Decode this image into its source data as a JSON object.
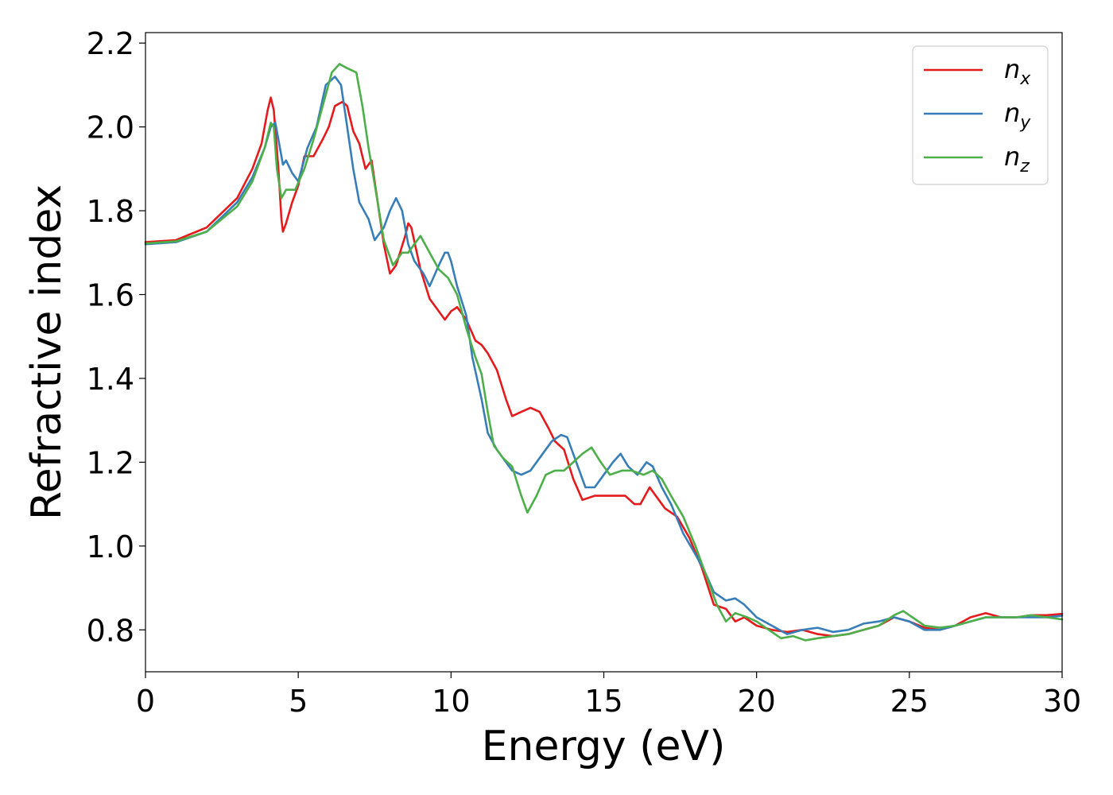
{
  "chart_data": {
    "type": "line",
    "xlabel": "Energy (eV)",
    "ylabel": "Refractive index",
    "xlim": [
      0,
      30
    ],
    "ylim": [
      0.7,
      2.225
    ],
    "xticks": [
      0,
      5,
      10,
      15,
      20,
      25,
      30
    ],
    "xtick_labels": [
      "0",
      "5",
      "10",
      "15",
      "20",
      "25",
      "30"
    ],
    "yticks": [
      0.8,
      1.0,
      1.2,
      1.4,
      1.6,
      1.8,
      2.0,
      2.2
    ],
    "ytick_labels": [
      "0.8",
      "1.0",
      "1.2",
      "1.4",
      "1.6",
      "1.8",
      "2.0",
      "2.2"
    ],
    "grid": false,
    "legend_position": "top-right",
    "series": [
      {
        "name": "n",
        "subscript": "x",
        "color": "#e41a1c",
        "points": [
          [
            0,
            1.725
          ],
          [
            1,
            1.73
          ],
          [
            2,
            1.76
          ],
          [
            3,
            1.83
          ],
          [
            3.5,
            1.9
          ],
          [
            3.8,
            1.96
          ],
          [
            4.0,
            2.04
          ],
          [
            4.1,
            2.07
          ],
          [
            4.2,
            2.04
          ],
          [
            4.35,
            1.9
          ],
          [
            4.45,
            1.78
          ],
          [
            4.5,
            1.75
          ],
          [
            4.6,
            1.77
          ],
          [
            4.8,
            1.82
          ],
          [
            5.0,
            1.86
          ],
          [
            5.2,
            1.93
          ],
          [
            5.5,
            1.93
          ],
          [
            5.8,
            1.97
          ],
          [
            6.0,
            2.0
          ],
          [
            6.2,
            2.05
          ],
          [
            6.45,
            2.06
          ],
          [
            6.6,
            2.05
          ],
          [
            6.8,
            1.99
          ],
          [
            7.0,
            1.96
          ],
          [
            7.2,
            1.9
          ],
          [
            7.4,
            1.92
          ],
          [
            7.6,
            1.82
          ],
          [
            7.8,
            1.72
          ],
          [
            8.0,
            1.65
          ],
          [
            8.2,
            1.67
          ],
          [
            8.5,
            1.74
          ],
          [
            8.6,
            1.77
          ],
          [
            8.7,
            1.76
          ],
          [
            9.0,
            1.66
          ],
          [
            9.3,
            1.59
          ],
          [
            9.6,
            1.56
          ],
          [
            9.8,
            1.54
          ],
          [
            10.0,
            1.56
          ],
          [
            10.2,
            1.57
          ],
          [
            10.5,
            1.54
          ],
          [
            10.8,
            1.49
          ],
          [
            11.0,
            1.48
          ],
          [
            11.2,
            1.46
          ],
          [
            11.5,
            1.42
          ],
          [
            11.8,
            1.35
          ],
          [
            12.0,
            1.31
          ],
          [
            12.3,
            1.32
          ],
          [
            12.6,
            1.33
          ],
          [
            12.9,
            1.32
          ],
          [
            13.2,
            1.28
          ],
          [
            13.4,
            1.25
          ],
          [
            13.7,
            1.23
          ],
          [
            14.0,
            1.16
          ],
          [
            14.3,
            1.11
          ],
          [
            14.7,
            1.12
          ],
          [
            15.0,
            1.12
          ],
          [
            15.3,
            1.12
          ],
          [
            15.7,
            1.12
          ],
          [
            16.0,
            1.1
          ],
          [
            16.2,
            1.1
          ],
          [
            16.5,
            1.14
          ],
          [
            16.8,
            1.11
          ],
          [
            17.0,
            1.09
          ],
          [
            17.4,
            1.07
          ],
          [
            17.8,
            1.02
          ],
          [
            18.2,
            0.95
          ],
          [
            18.6,
            0.86
          ],
          [
            19.0,
            0.85
          ],
          [
            19.3,
            0.82
          ],
          [
            19.6,
            0.83
          ],
          [
            20.0,
            0.81
          ],
          [
            20.5,
            0.8
          ],
          [
            21.0,
            0.795
          ],
          [
            21.5,
            0.8
          ],
          [
            22.0,
            0.79
          ],
          [
            22.5,
            0.785
          ],
          [
            23.0,
            0.79
          ],
          [
            23.5,
            0.8
          ],
          [
            24.0,
            0.81
          ],
          [
            24.5,
            0.83
          ],
          [
            25.0,
            0.82
          ],
          [
            25.5,
            0.805
          ],
          [
            26.0,
            0.8
          ],
          [
            26.5,
            0.81
          ],
          [
            27.0,
            0.83
          ],
          [
            27.5,
            0.84
          ],
          [
            28.0,
            0.83
          ],
          [
            28.5,
            0.83
          ],
          [
            29.0,
            0.835
          ],
          [
            29.5,
            0.835
          ],
          [
            30.0,
            0.838
          ]
        ]
      },
      {
        "name": "n",
        "subscript": "y",
        "color": "#377eb8",
        "points": [
          [
            0,
            1.72
          ],
          [
            1,
            1.725
          ],
          [
            2,
            1.75
          ],
          [
            3,
            1.82
          ],
          [
            3.5,
            1.88
          ],
          [
            3.9,
            1.95
          ],
          [
            4.1,
            2.0
          ],
          [
            4.25,
            2.01
          ],
          [
            4.35,
            1.97
          ],
          [
            4.5,
            1.91
          ],
          [
            4.6,
            1.92
          ],
          [
            4.8,
            1.89
          ],
          [
            5.0,
            1.87
          ],
          [
            5.3,
            1.95
          ],
          [
            5.6,
            2.0
          ],
          [
            5.9,
            2.1
          ],
          [
            6.2,
            2.12
          ],
          [
            6.4,
            2.1
          ],
          [
            6.6,
            2.0
          ],
          [
            6.8,
            1.9
          ],
          [
            7.0,
            1.82
          ],
          [
            7.3,
            1.78
          ],
          [
            7.5,
            1.73
          ],
          [
            7.8,
            1.76
          ],
          [
            8.0,
            1.8
          ],
          [
            8.2,
            1.83
          ],
          [
            8.4,
            1.8
          ],
          [
            8.6,
            1.72
          ],
          [
            8.8,
            1.68
          ],
          [
            9.1,
            1.65
          ],
          [
            9.3,
            1.62
          ],
          [
            9.6,
            1.67
          ],
          [
            9.8,
            1.7
          ],
          [
            9.9,
            1.7
          ],
          [
            10.0,
            1.68
          ],
          [
            10.2,
            1.62
          ],
          [
            10.5,
            1.55
          ],
          [
            10.7,
            1.45
          ],
          [
            11.0,
            1.35
          ],
          [
            11.2,
            1.27
          ],
          [
            11.5,
            1.23
          ],
          [
            11.8,
            1.2
          ],
          [
            12.0,
            1.18
          ],
          [
            12.3,
            1.17
          ],
          [
            12.6,
            1.18
          ],
          [
            13.0,
            1.22
          ],
          [
            13.3,
            1.25
          ],
          [
            13.6,
            1.265
          ],
          [
            13.8,
            1.26
          ],
          [
            14.1,
            1.2
          ],
          [
            14.4,
            1.14
          ],
          [
            14.7,
            1.14
          ],
          [
            15.0,
            1.17
          ],
          [
            15.3,
            1.2
          ],
          [
            15.55,
            1.22
          ],
          [
            15.8,
            1.19
          ],
          [
            16.1,
            1.17
          ],
          [
            16.4,
            1.2
          ],
          [
            16.6,
            1.19
          ],
          [
            16.9,
            1.14
          ],
          [
            17.2,
            1.1
          ],
          [
            17.6,
            1.03
          ],
          [
            18.0,
            0.98
          ],
          [
            18.3,
            0.94
          ],
          [
            18.6,
            0.89
          ],
          [
            19.0,
            0.87
          ],
          [
            19.3,
            0.875
          ],
          [
            19.6,
            0.86
          ],
          [
            20.0,
            0.83
          ],
          [
            20.5,
            0.81
          ],
          [
            21.0,
            0.79
          ],
          [
            21.5,
            0.8
          ],
          [
            22.0,
            0.805
          ],
          [
            22.5,
            0.795
          ],
          [
            23.0,
            0.8
          ],
          [
            23.5,
            0.815
          ],
          [
            24.0,
            0.82
          ],
          [
            24.5,
            0.83
          ],
          [
            25.0,
            0.82
          ],
          [
            25.5,
            0.8
          ],
          [
            26.0,
            0.8
          ],
          [
            26.5,
            0.81
          ],
          [
            27.0,
            0.82
          ],
          [
            27.5,
            0.83
          ],
          [
            28.0,
            0.83
          ],
          [
            28.5,
            0.83
          ],
          [
            29.0,
            0.83
          ],
          [
            29.5,
            0.83
          ],
          [
            30.0,
            0.834
          ]
        ]
      },
      {
        "name": "n",
        "subscript": "z",
        "color": "#4daf4a",
        "points": [
          [
            0,
            1.722
          ],
          [
            1,
            1.727
          ],
          [
            2,
            1.75
          ],
          [
            3,
            1.81
          ],
          [
            3.5,
            1.87
          ],
          [
            3.9,
            1.95
          ],
          [
            4.1,
            2.01
          ],
          [
            4.2,
            2.0
          ],
          [
            4.3,
            1.9
          ],
          [
            4.45,
            1.83
          ],
          [
            4.6,
            1.85
          ],
          [
            4.9,
            1.85
          ],
          [
            5.2,
            1.9
          ],
          [
            5.5,
            1.97
          ],
          [
            5.8,
            2.05
          ],
          [
            6.1,
            2.13
          ],
          [
            6.35,
            2.15
          ],
          [
            6.6,
            2.14
          ],
          [
            6.9,
            2.13
          ],
          [
            7.1,
            2.05
          ],
          [
            7.3,
            1.95
          ],
          [
            7.6,
            1.82
          ],
          [
            7.8,
            1.73
          ],
          [
            8.1,
            1.67
          ],
          [
            8.4,
            1.7
          ],
          [
            8.6,
            1.7
          ],
          [
            8.8,
            1.72
          ],
          [
            9.0,
            1.74
          ],
          [
            9.3,
            1.7
          ],
          [
            9.6,
            1.66
          ],
          [
            9.9,
            1.64
          ],
          [
            10.2,
            1.6
          ],
          [
            10.5,
            1.52
          ],
          [
            10.8,
            1.45
          ],
          [
            11.0,
            1.41
          ],
          [
            11.2,
            1.32
          ],
          [
            11.4,
            1.24
          ],
          [
            11.7,
            1.21
          ],
          [
            12.0,
            1.19
          ],
          [
            12.3,
            1.12
          ],
          [
            12.5,
            1.08
          ],
          [
            12.8,
            1.12
          ],
          [
            13.1,
            1.17
          ],
          [
            13.4,
            1.18
          ],
          [
            13.7,
            1.18
          ],
          [
            14.0,
            1.2
          ],
          [
            14.3,
            1.22
          ],
          [
            14.6,
            1.235
          ],
          [
            14.9,
            1.2
          ],
          [
            15.2,
            1.17
          ],
          [
            15.6,
            1.18
          ],
          [
            15.9,
            1.18
          ],
          [
            16.3,
            1.17
          ],
          [
            16.6,
            1.18
          ],
          [
            16.9,
            1.16
          ],
          [
            17.2,
            1.12
          ],
          [
            17.6,
            1.07
          ],
          [
            18.0,
            1.0
          ],
          [
            18.3,
            0.94
          ],
          [
            18.7,
            0.86
          ],
          [
            19.0,
            0.82
          ],
          [
            19.3,
            0.84
          ],
          [
            19.7,
            0.83
          ],
          [
            20.0,
            0.82
          ],
          [
            20.4,
            0.8
          ],
          [
            20.8,
            0.78
          ],
          [
            21.2,
            0.785
          ],
          [
            21.6,
            0.775
          ],
          [
            22.0,
            0.78
          ],
          [
            22.5,
            0.785
          ],
          [
            23.0,
            0.79
          ],
          [
            23.5,
            0.8
          ],
          [
            24.0,
            0.81
          ],
          [
            24.5,
            0.835
          ],
          [
            24.8,
            0.845
          ],
          [
            25.1,
            0.83
          ],
          [
            25.5,
            0.81
          ],
          [
            26.0,
            0.805
          ],
          [
            26.5,
            0.81
          ],
          [
            27.0,
            0.82
          ],
          [
            27.5,
            0.83
          ],
          [
            28.0,
            0.83
          ],
          [
            28.5,
            0.83
          ],
          [
            29.0,
            0.835
          ],
          [
            29.5,
            0.83
          ],
          [
            30.0,
            0.825
          ]
        ]
      }
    ]
  }
}
